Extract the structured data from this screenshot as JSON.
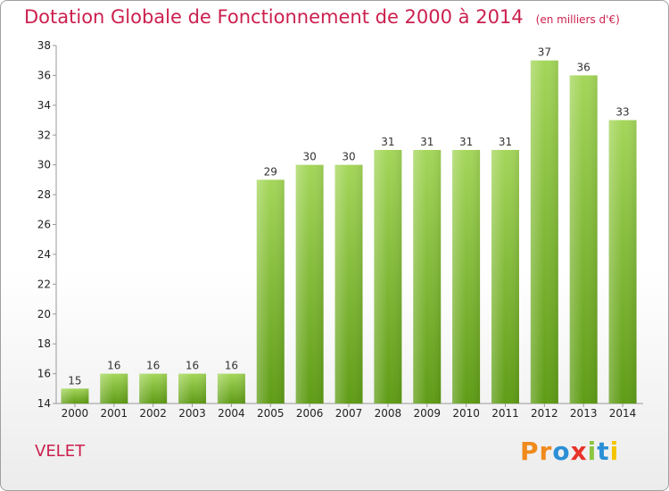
{
  "colors": {
    "title": "#cc1f4e",
    "bar_light": "#a4d65a",
    "bar_dark": "#5f9c16",
    "axis": "#999999"
  },
  "chart_data": {
    "type": "bar",
    "title": "Dotation Globale de Fonctionnement de 2000 à 2014",
    "subtitle": "(en milliers d'€)",
    "categories": [
      "2000",
      "2001",
      "2002",
      "2003",
      "2004",
      "2005",
      "2006",
      "2007",
      "2008",
      "2009",
      "2010",
      "2011",
      "2012",
      "2013",
      "2014"
    ],
    "values": [
      15,
      16,
      16,
      16,
      16,
      29,
      30,
      30,
      31,
      31,
      31,
      31,
      37,
      36,
      33
    ],
    "ylim": [
      14,
      38
    ],
    "yticks": [
      14,
      16,
      18,
      20,
      22,
      24,
      26,
      28,
      30,
      32,
      34,
      36,
      38
    ],
    "xlabel": "",
    "ylabel": "",
    "grid": false
  },
  "footer": {
    "commune": "VELET",
    "logo_letters": [
      {
        "ch": "P",
        "color": "#f08a1c"
      },
      {
        "ch": "r",
        "color": "#f08a1c"
      },
      {
        "ch": "o",
        "color": "#2a8fd6"
      },
      {
        "ch": "x",
        "color": "#e8332a"
      },
      {
        "ch": "i",
        "color": "#8cc63f"
      },
      {
        "ch": "t",
        "color": "#2a8fd6"
      },
      {
        "ch": "i",
        "color": "#f5c400"
      }
    ]
  }
}
